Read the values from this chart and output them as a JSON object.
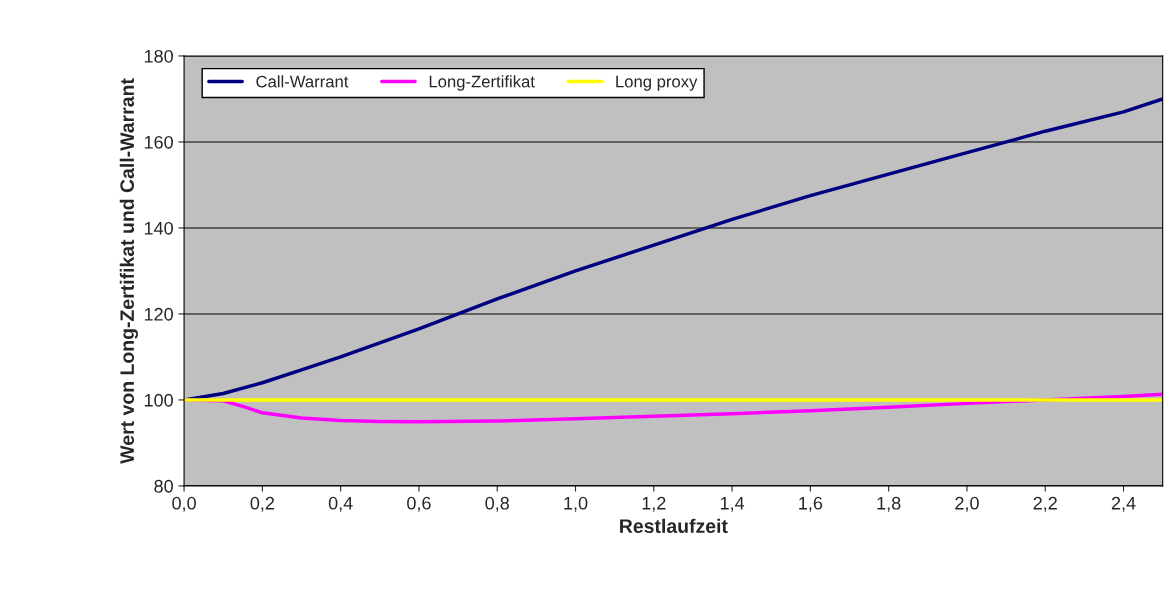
{
  "chart_data": {
    "type": "line",
    "xlabel": "Restlaufzeit",
    "ylabel": "Wert von Long-Zertifikat und Call-Warrant",
    "xlim": [
      0,
      2.5
    ],
    "xticks": [
      {
        "value": 0,
        "label": "0,0"
      },
      {
        "value": 0.2,
        "label": "0,2"
      },
      {
        "value": 0.4,
        "label": "0,4"
      },
      {
        "value": 0.6,
        "label": "0,6"
      },
      {
        "value": 0.8,
        "label": "0,8"
      },
      {
        "value": 1.0,
        "label": "1,0"
      },
      {
        "value": 1.2,
        "label": "1,2"
      },
      {
        "value": 1.4,
        "label": "1,4"
      },
      {
        "value": 1.6,
        "label": "1,6"
      },
      {
        "value": 1.8,
        "label": "1,8"
      },
      {
        "value": 2.0,
        "label": "2,0"
      },
      {
        "value": 2.2,
        "label": "2,2"
      },
      {
        "value": 2.4,
        "label": "2,4"
      }
    ],
    "ylim": [
      80,
      180
    ],
    "yticks": [
      80,
      100,
      120,
      140,
      160,
      180
    ],
    "grid": "y",
    "legend": "top left",
    "marker": "none",
    "line_style": "solid",
    "series": [
      {
        "name": "Call-Warrant",
        "color": "#000080",
        "x": [
          0,
          0.1,
          0.2,
          0.3,
          0.4,
          0.6,
          0.8,
          1.0,
          1.2,
          1.4,
          1.6,
          1.8,
          2.0,
          2.2,
          2.4,
          2.5
        ],
        "values": [
          100,
          101.5,
          104,
          107,
          110,
          116.5,
          123.5,
          130,
          136,
          142,
          147.5,
          152.5,
          157.5,
          162.5,
          167,
          170
        ]
      },
      {
        "name": "Long-Zertifikat",
        "color": "#ff00ff",
        "x": [
          0,
          0.1,
          0.15,
          0.2,
          0.3,
          0.4,
          0.5,
          0.6,
          0.8,
          1.0,
          1.2,
          1.4,
          1.6,
          1.8,
          2.0,
          2.4,
          2.5
        ],
        "values": [
          100,
          99.8,
          98.5,
          97,
          95.8,
          95.2,
          95,
          94.9,
          95.1,
          95.6,
          96.2,
          96.8,
          97.5,
          98.3,
          99.2,
          100.8,
          101.3
        ]
      },
      {
        "name": "Long proxy",
        "color": "#ffff00",
        "x": [
          0,
          2.5
        ],
        "values": [
          100,
          100
        ]
      }
    ]
  }
}
